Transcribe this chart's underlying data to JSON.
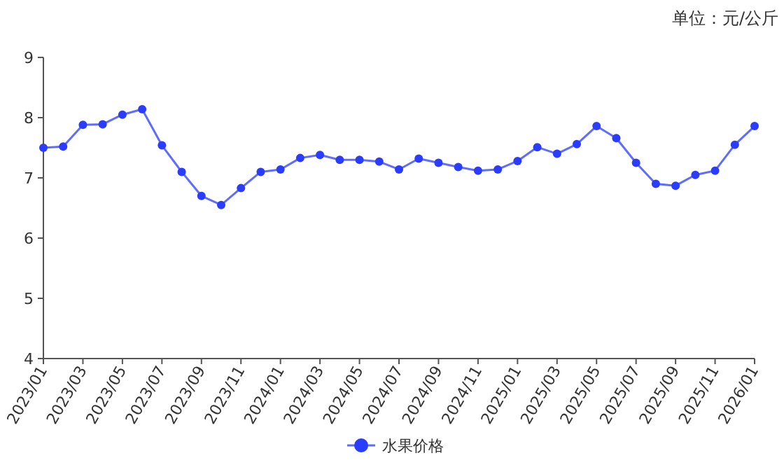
{
  "chart_data": {
    "type": "line",
    "annotations": [
      "单位：元/公斤"
    ],
    "categories": [
      "2023/01",
      null,
      "2023/03",
      null,
      "2023/05",
      null,
      "2023/07",
      null,
      "2023/09",
      null,
      "2023/11",
      null,
      "2024/01",
      null,
      "2024/03",
      null,
      "2024/05",
      null,
      "2024/07",
      null,
      "2024/09",
      null,
      "2024/11",
      null,
      "2025/01",
      null,
      "2025/03",
      null,
      "2025/05",
      null,
      "2025/07",
      null,
      "2025/09",
      null,
      "2025/11",
      null,
      "2026/01"
    ],
    "series": [
      {
        "name": "水果价格",
        "color": "#2a3cff",
        "values": [
          7.5,
          7.52,
          7.88,
          7.89,
          8.05,
          8.14,
          7.54,
          7.1,
          6.7,
          6.55,
          6.83,
          7.1,
          7.14,
          7.33,
          7.38,
          7.3,
          7.3,
          7.27,
          7.14,
          7.32,
          7.25,
          7.18,
          7.12,
          7.14,
          7.28,
          7.51,
          7.4,
          7.56,
          7.86,
          7.66,
          7.25,
          6.9,
          6.87,
          7.05,
          7.12,
          7.55,
          7.86
        ]
      }
    ],
    "ylim": [
      4,
      9
    ],
    "yticks": [
      4,
      5,
      6,
      7,
      8,
      9
    ],
    "grid": false,
    "legend": "bottom",
    "marker": "circle",
    "line_style": "solid"
  }
}
